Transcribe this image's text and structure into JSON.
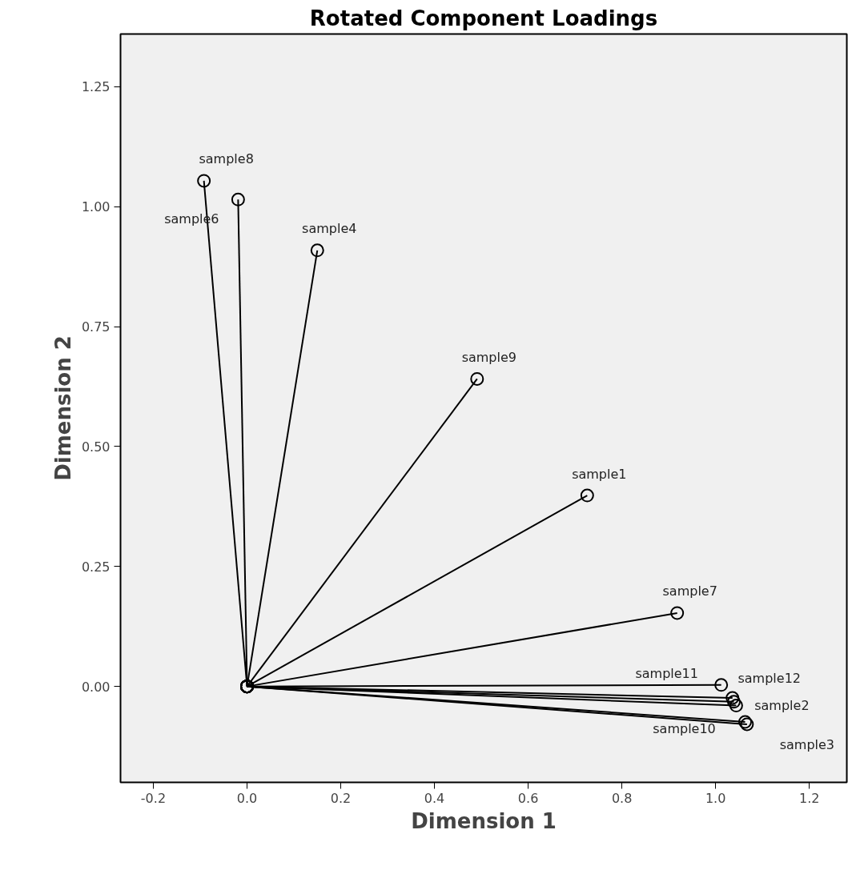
{
  "chart_data": {
    "type": "line",
    "title": "Rotated Component Loadings",
    "xlabel": "Dimension 1",
    "ylabel": "Dimension 2",
    "marker": "circle",
    "line_style": "solid",
    "grid": false,
    "xlim": [
      -0.27,
      1.28
    ],
    "ylim": [
      -0.2,
      1.36
    ],
    "xticks": [
      {
        "value": -0.2,
        "label": "-0.2"
      },
      {
        "value": 0,
        "label": "0.0"
      },
      {
        "value": 0.2,
        "label": "0.2"
      },
      {
        "value": 0.4,
        "label": "0.4"
      },
      {
        "value": 0.6,
        "label": "0.6"
      },
      {
        "value": 0.8,
        "label": "0.8"
      },
      {
        "value": 1,
        "label": "1.0"
      },
      {
        "value": 1.2,
        "label": "1.2"
      }
    ],
    "yticks": [
      {
        "value": 0,
        "label": "0.00"
      },
      {
        "value": 0.25,
        "label": "0.25"
      },
      {
        "value": 0.5,
        "label": "0.50"
      },
      {
        "value": 0.75,
        "label": "0.75"
      },
      {
        "value": 1,
        "label": "1.00"
      },
      {
        "value": 1.25,
        "label": "1.25"
      }
    ],
    "series": [
      {
        "color": "#000000",
        "x": [
          0,
          -0.092
        ],
        "values": [
          0,
          1.054
        ]
      },
      {
        "color": "#000000",
        "x": [
          0,
          -0.019
        ],
        "values": [
          0,
          1.015
        ]
      },
      {
        "color": "#000000",
        "x": [
          0,
          0.15
        ],
        "values": [
          0,
          0.909
        ]
      },
      {
        "color": "#000000",
        "x": [
          0,
          0.491
        ],
        "values": [
          0,
          0.641
        ]
      },
      {
        "color": "#000000",
        "x": [
          0,
          0.726
        ],
        "values": [
          0,
          0.398
        ]
      },
      {
        "color": "#000000",
        "x": [
          0,
          0.918
        ],
        "values": [
          0,
          0.153
        ]
      },
      {
        "color": "#000000",
        "x": [
          0,
          1.012
        ],
        "values": [
          0,
          0.003
        ]
      },
      {
        "color": "#000000",
        "x": [
          0,
          1.036
        ],
        "values": [
          0,
          -0.024
        ]
      },
      {
        "color": "#000000",
        "x": [
          0,
          1.044
        ],
        "values": [
          0,
          -0.04
        ]
      },
      {
        "color": "#000000",
        "x": [
          0,
          1.039
        ],
        "values": [
          0,
          -0.032
        ]
      },
      {
        "color": "#000000",
        "x": [
          0,
          1.063
        ],
        "values": [
          0,
          -0.074
        ]
      },
      {
        "color": "#000000",
        "x": [
          0,
          1.067
        ],
        "values": [
          0,
          -0.079
        ]
      }
    ],
    "annotations": [
      {
        "text": "sample8",
        "x": -0.092,
        "y": 1.054
      },
      {
        "text": "sample6",
        "x": -0.019,
        "y": 1.015
      },
      {
        "text": "sample4",
        "x": 0.15,
        "y": 0.909
      },
      {
        "text": "sample9",
        "x": 0.491,
        "y": 0.641
      },
      {
        "text": "sample1",
        "x": 0.726,
        "y": 0.398
      },
      {
        "text": "sample7",
        "x": 0.918,
        "y": 0.153
      },
      {
        "text": "sample11",
        "x": 1.012,
        "y": 0.003
      },
      {
        "text": "sample12",
        "x": 1.036,
        "y": -0.024
      },
      {
        "text": "sample2",
        "x": 1.044,
        "y": -0.04
      },
      {
        "text": "sample10",
        "x": 1.063,
        "y": -0.074
      },
      {
        "text": "sample3",
        "x": 1.067,
        "y": -0.079
      }
    ]
  }
}
